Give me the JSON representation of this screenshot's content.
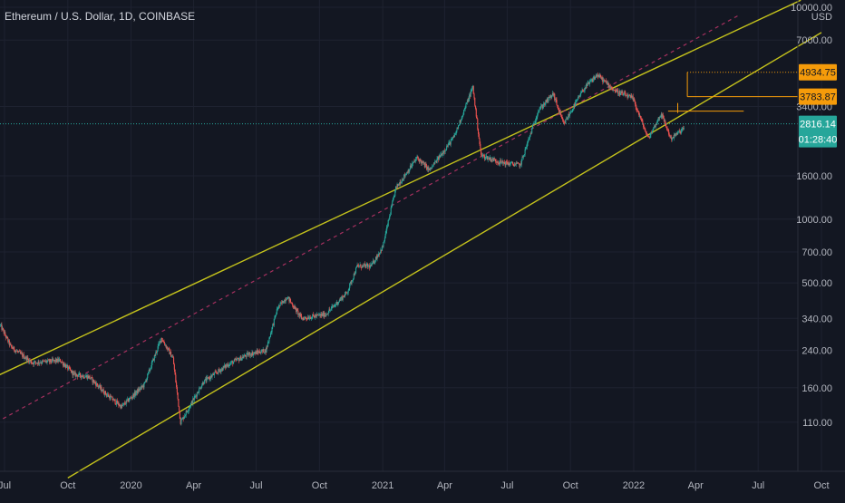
{
  "header": {
    "title": "Ethereum / U.S. Dollar, 1D, COINBASE"
  },
  "colors": {
    "background": "#131722",
    "up_candle": "#26a69a",
    "down_candle": "#ef5350",
    "channel_line": "#c4c21c",
    "midline": "#c0356a",
    "level_box": "#f59b0a",
    "current_price_bg": "#26a69a",
    "grid": "#1e2230",
    "axis_text": "#b2b5be"
  },
  "price_axis": {
    "currency": "USD",
    "tick_labels": [
      "10000.00",
      "7000.00",
      "3400.00",
      "1600.00",
      "1000.00",
      "700.00",
      "500.00",
      "340.00",
      "240.00",
      "160.00",
      "110.00"
    ],
    "current_price": "2816.14",
    "countdown": "01:28:40",
    "levels": [
      "4934.75",
      "3783.87"
    ]
  },
  "time_axis": {
    "tick_labels": [
      "Jul",
      "Oct",
      "2020",
      "Apr",
      "Jul",
      "Oct",
      "2021",
      "Apr",
      "Jul",
      "Oct",
      "2022",
      "Apr",
      "Jul",
      "Oct"
    ]
  },
  "chart_data": {
    "type": "candlestick",
    "scale": "log",
    "x_axis": "date, daily candles",
    "ylim": [
      85,
      10200
    ],
    "ticks": [
      10000,
      7000,
      3400,
      1600,
      1000,
      700,
      500,
      340,
      240,
      160,
      110
    ],
    "x_ticks": [
      "2019-07-01",
      "2019-10-01",
      "2020-01-01",
      "2020-04-01",
      "2020-07-01",
      "2020-10-01",
      "2021-01-01",
      "2021-04-01",
      "2021-07-01",
      "2021-10-01",
      "2022-01-01",
      "2022-04-01",
      "2022-07-01",
      "2022-10-01"
    ],
    "price_path": [
      [
        "2019-06-25",
        315
      ],
      [
        "2019-07-10",
        250
      ],
      [
        "2019-08-10",
        210
      ],
      [
        "2019-09-20",
        215
      ],
      [
        "2019-10-10",
        185
      ],
      [
        "2019-11-01",
        180
      ],
      [
        "2019-11-25",
        150
      ],
      [
        "2019-12-18",
        130
      ],
      [
        "2020-01-20",
        165
      ],
      [
        "2020-02-14",
        275
      ],
      [
        "2020-03-02",
        220
      ],
      [
        "2020-03-13",
        110
      ],
      [
        "2020-04-15",
        170
      ],
      [
        "2020-05-20",
        205
      ],
      [
        "2020-06-20",
        230
      ],
      [
        "2020-07-15",
        240
      ],
      [
        "2020-08-01",
        380
      ],
      [
        "2020-08-15",
        430
      ],
      [
        "2020-09-05",
        340
      ],
      [
        "2020-10-10",
        355
      ],
      [
        "2020-11-10",
        450
      ],
      [
        "2020-11-25",
        600
      ],
      [
        "2020-12-15",
        600
      ],
      [
        "2021-01-01",
        740
      ],
      [
        "2021-01-20",
        1400
      ],
      [
        "2021-02-20",
        1950
      ],
      [
        "2021-03-10",
        1700
      ],
      [
        "2021-04-15",
        2450
      ],
      [
        "2021-05-12",
        4200
      ],
      [
        "2021-05-24",
        2000
      ],
      [
        "2021-06-22",
        1850
      ],
      [
        "2021-07-20",
        1800
      ],
      [
        "2021-08-15",
        3250
      ],
      [
        "2021-09-06",
        3900
      ],
      [
        "2021-09-21",
        2800
      ],
      [
        "2021-10-20",
        4100
      ],
      [
        "2021-11-09",
        4800
      ],
      [
        "2021-12-04",
        4050
      ],
      [
        "2021-12-31",
        3700
      ],
      [
        "2022-01-22",
        2400
      ],
      [
        "2022-02-10",
        3150
      ],
      [
        "2022-02-24",
        2400
      ],
      [
        "2022-03-10",
        2600
      ],
      [
        "2022-03-15",
        2700
      ]
    ],
    "annotations": {
      "channel_upper": [
        [
          "2019-06-01",
          170
        ],
        [
          "2022-09-01",
          10800
        ]
      ],
      "channel_lower": [
        [
          "2019-10-01",
          60
        ],
        [
          "2022-10-01",
          7600
        ]
      ],
      "channel_mid": [
        [
          "2019-06-01",
          102
        ],
        [
          "2022-06-01",
          9100
        ]
      ],
      "current_price": 2816.14,
      "levels": [
        4934.75,
        3783.87
      ]
    }
  }
}
